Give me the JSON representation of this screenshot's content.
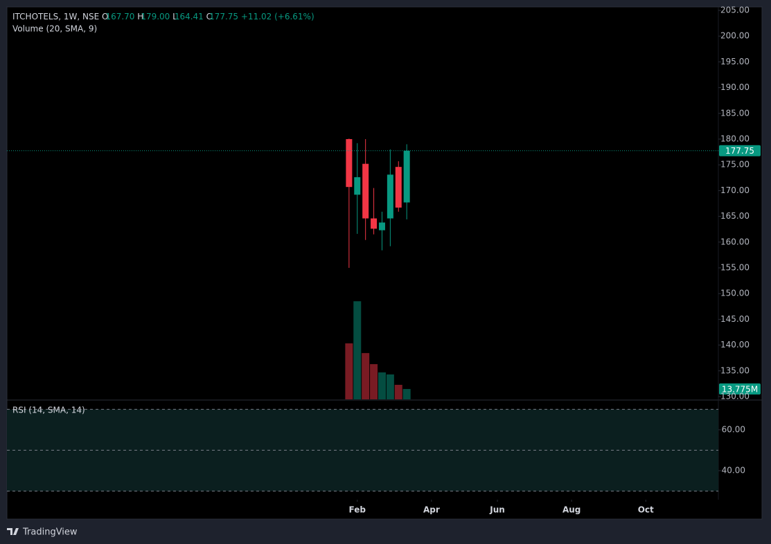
{
  "legend": {
    "symbol": "ITCHOTELS, 1W, NSE",
    "open_label": "O",
    "open": "167.70",
    "high_label": "H",
    "high": "179.00",
    "low_label": "L",
    "low": "164.41",
    "close_label": "C",
    "close": "177.75",
    "change": "+11.02 (+6.61%)"
  },
  "chart_data": [
    {
      "type": "candlestick",
      "x": [
        0,
        1,
        2,
        3,
        4,
        5,
        6,
        7
      ],
      "open": [
        180.0,
        169.2,
        175.2,
        164.6,
        162.3,
        164.6,
        174.6,
        167.7
      ],
      "high": [
        180.1,
        179.2,
        180.0,
        170.5,
        165.9,
        178.0,
        175.7,
        179.0
      ],
      "low": [
        155.0,
        161.6,
        160.4,
        161.5,
        158.4,
        159.2,
        165.9,
        164.41
      ],
      "close": [
        170.7,
        172.6,
        164.6,
        162.6,
        163.8,
        173.1,
        166.7,
        177.75
      ],
      "up_color": "#089981",
      "down_color": "#f23645",
      "xlim": [
        -41.5,
        44.8
      ],
      "ylim": [
        129.46,
        205.67
      ],
      "xticks": [
        {
          "value": 1,
          "label": "Feb"
        },
        {
          "value": 10,
          "label": "Apr"
        },
        {
          "value": 18,
          "label": "Jun"
        },
        {
          "value": 27,
          "label": "Aug"
        },
        {
          "value": 36,
          "label": "Oct"
        }
      ],
      "yticks": [
        {
          "value": 130,
          "label": "130.00"
        },
        {
          "value": 135,
          "label": "135.00"
        },
        {
          "value": 140,
          "label": "140.00"
        },
        {
          "value": 145,
          "label": "145.00"
        },
        {
          "value": 150,
          "label": "150.00"
        },
        {
          "value": 155,
          "label": "155.00"
        },
        {
          "value": 160,
          "label": "160.00"
        },
        {
          "value": 165,
          "label": "165.00"
        },
        {
          "value": 170,
          "label": "170.00"
        },
        {
          "value": 175,
          "label": "175.00"
        },
        {
          "value": 180,
          "label": "180.00"
        },
        {
          "value": 185,
          "label": "185.00"
        },
        {
          "value": 190,
          "label": "190.00"
        },
        {
          "value": 195,
          "label": "195.00"
        },
        {
          "value": 200,
          "label": "200.00"
        },
        {
          "value": 205,
          "label": "205.00"
        }
      ],
      "last_value_label": "177.75"
    },
    {
      "type": "volume",
      "title": "Volume (20, SMA, 9)",
      "x": [
        0,
        1,
        2,
        3,
        4,
        5,
        6,
        7
      ],
      "values": [
        74400000,
        130400000,
        61500000,
        46800000,
        35800000,
        33100000,
        19300000,
        13775000
      ],
      "last_value_label": "13.775M"
    },
    {
      "type": "rsi",
      "title": "RSI (14, SMA, 14)",
      "ylim": [
        25.8,
        74.2
      ],
      "yticks": [
        {
          "value": 60,
          "label": "60.00"
        },
        {
          "value": 40,
          "label": "40.00"
        }
      ],
      "levels": [
        70,
        50,
        30
      ],
      "band_color": "#0b1f1f"
    }
  ],
  "footer": {
    "brand": "TradingView"
  }
}
